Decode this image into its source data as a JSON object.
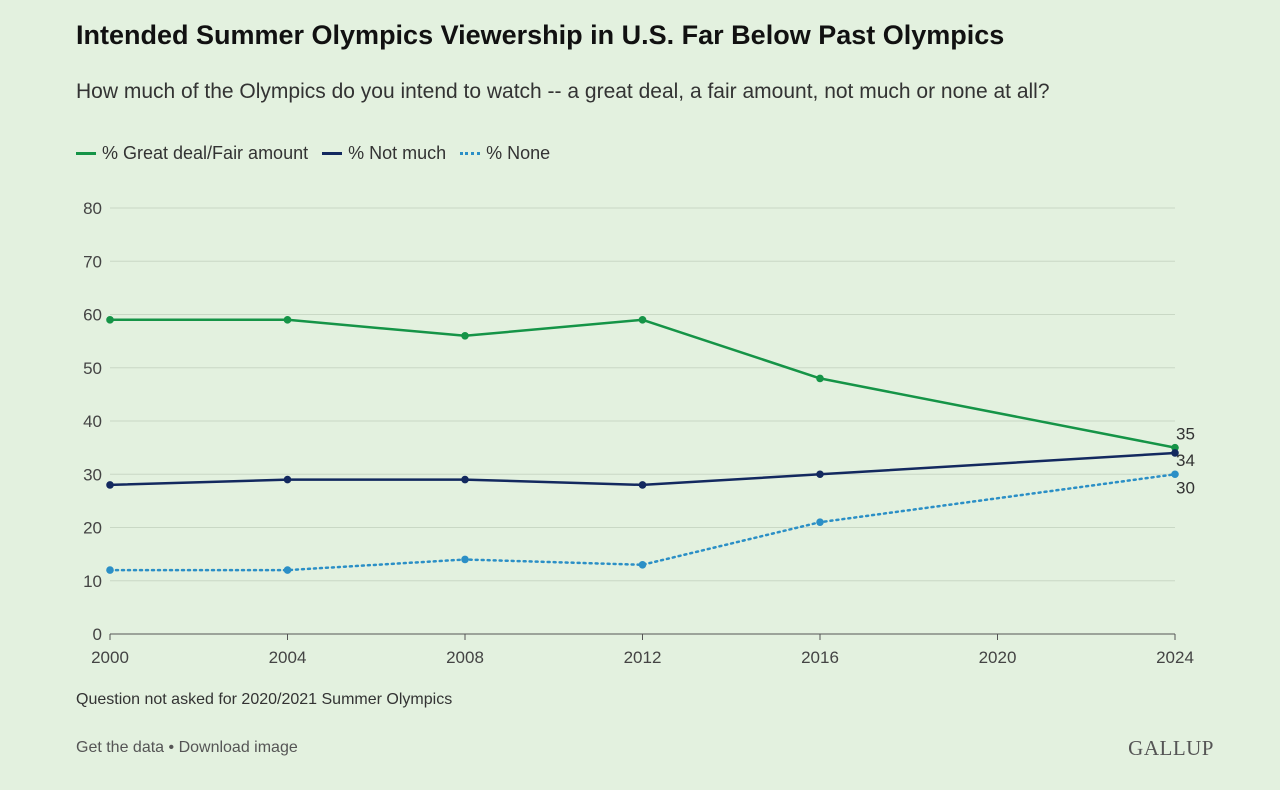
{
  "header": {
    "title": "Intended Summer Olympics Viewership in U.S. Far Below Past Olympics",
    "subtitle": "How much of the Olympics do you intend to watch -- a great deal, a fair amount, not much or none at all?"
  },
  "chart_data": {
    "type": "line",
    "title": "Intended Summer Olympics Viewership in U.S. Far Below Past Olympics",
    "subtitle": "How much of the Olympics do you intend to watch -- a great deal, a fair amount, not much or none at all?",
    "xlabel": "",
    "ylabel": "",
    "x_ticks": [
      2000,
      2004,
      2008,
      2012,
      2016,
      2020,
      2024
    ],
    "xlim": [
      2000,
      2024
    ],
    "y_ticks": [
      0,
      10,
      20,
      30,
      40,
      50,
      60,
      70,
      80
    ],
    "ylim": [
      0,
      80
    ],
    "grid": true,
    "legend_position": "top-left",
    "series": [
      {
        "name": "% Great deal/Fair amount",
        "color": "#159447",
        "style": "solid",
        "x": [
          2000,
          2004,
          2008,
          2012,
          2016,
          2024
        ],
        "values": [
          59,
          59,
          56,
          59,
          48,
          35
        ],
        "end_label": "35"
      },
      {
        "name": "% Not much",
        "color": "#13295f",
        "style": "solid",
        "x": [
          2000,
          2004,
          2008,
          2012,
          2016,
          2024
        ],
        "values": [
          28,
          29,
          29,
          28,
          30,
          34
        ],
        "end_label": "34"
      },
      {
        "name": "% None",
        "color": "#2b8fc6",
        "style": "dotted",
        "x": [
          2000,
          2004,
          2008,
          2012,
          2016,
          2024
        ],
        "values": [
          12,
          12,
          14,
          13,
          21,
          30
        ],
        "end_label": "30"
      }
    ]
  },
  "footnote": "Question not asked for 2020/2021 Summer Olympics",
  "footer": {
    "get_data": "Get the data",
    "separator": " • ",
    "download": "Download image"
  },
  "brand": {
    "logo_text": "GALLUP"
  }
}
